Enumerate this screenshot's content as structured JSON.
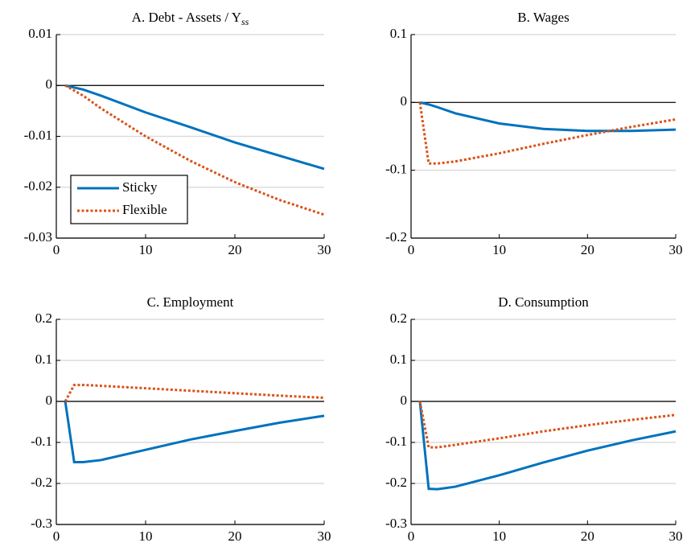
{
  "chart_data": [
    {
      "type": "line",
      "title": "A. Debt - Assets / Y",
      "title_subscript": "ss",
      "x": [
        1,
        2,
        3,
        5,
        10,
        15,
        20,
        25,
        30
      ],
      "series": [
        {
          "name": "Sticky",
          "color": "#0072bd",
          "style": "solid",
          "values": [
            0,
            -0.0004,
            -0.0008,
            -0.002,
            -0.0053,
            -0.0082,
            -0.0112,
            -0.0138,
            -0.0164
          ]
        },
        {
          "name": "Flexible",
          "color": "#d95319",
          "style": "dotted",
          "values": [
            0,
            -0.001,
            -0.002,
            -0.0045,
            -0.01,
            -0.0148,
            -0.019,
            -0.0225,
            -0.0254
          ]
        }
      ],
      "xlim": [
        0,
        30
      ],
      "xticks": [
        0,
        10,
        20,
        30
      ],
      "ylim": [
        -0.03,
        0.01
      ],
      "yticks": [
        -0.03,
        -0.02,
        -0.01,
        0,
        0.01
      ],
      "grid": true,
      "legend": "lower left"
    },
    {
      "type": "line",
      "title": "B. Wages",
      "x": [
        1,
        2,
        3,
        5,
        10,
        15,
        20,
        25,
        30
      ],
      "series": [
        {
          "color": "#0072bd",
          "style": "solid",
          "values": [
            0,
            -0.003,
            -0.007,
            -0.016,
            -0.031,
            -0.039,
            -0.042,
            -0.042,
            -0.04
          ]
        },
        {
          "color": "#d95319",
          "style": "dotted",
          "values": [
            0,
            -0.09,
            -0.09,
            -0.087,
            -0.075,
            -0.061,
            -0.048,
            -0.036,
            -0.025
          ]
        }
      ],
      "xlim": [
        0,
        30
      ],
      "xticks": [
        0,
        10,
        20,
        30
      ],
      "ylim": [
        -0.2,
        0.1
      ],
      "yticks": [
        -0.2,
        -0.1,
        0,
        0.1
      ],
      "grid": true
    },
    {
      "type": "line",
      "title": "C. Employment",
      "x": [
        1,
        2,
        3,
        5,
        10,
        15,
        20,
        25,
        30
      ],
      "series": [
        {
          "color": "#0072bd",
          "style": "solid",
          "values": [
            0,
            -0.148,
            -0.148,
            -0.143,
            -0.118,
            -0.093,
            -0.072,
            -0.052,
            -0.035
          ]
        },
        {
          "color": "#d95319",
          "style": "dotted",
          "values": [
            0,
            0.04,
            0.04,
            0.038,
            0.032,
            0.026,
            0.02,
            0.014,
            0.009
          ]
        }
      ],
      "xlim": [
        0,
        30
      ],
      "xticks": [
        0,
        10,
        20,
        30
      ],
      "ylim": [
        -0.3,
        0.2
      ],
      "yticks": [
        -0.3,
        -0.2,
        -0.1,
        0,
        0.1,
        0.2
      ],
      "grid": true
    },
    {
      "type": "line",
      "title": "D. Consumption",
      "x": [
        1,
        2,
        3,
        5,
        10,
        15,
        20,
        25,
        30
      ],
      "series": [
        {
          "color": "#0072bd",
          "style": "solid",
          "values": [
            0,
            -0.213,
            -0.214,
            -0.208,
            -0.18,
            -0.149,
            -0.12,
            -0.095,
            -0.073
          ]
        },
        {
          "color": "#d95319",
          "style": "dotted",
          "values": [
            0,
            -0.112,
            -0.112,
            -0.106,
            -0.09,
            -0.073,
            -0.058,
            -0.045,
            -0.033
          ]
        }
      ],
      "xlim": [
        0,
        30
      ],
      "xticks": [
        0,
        10,
        20,
        30
      ],
      "ylim": [
        -0.3,
        0.2
      ],
      "yticks": [
        -0.3,
        -0.2,
        -0.1,
        0,
        0.1,
        0.2
      ],
      "grid": true
    }
  ]
}
